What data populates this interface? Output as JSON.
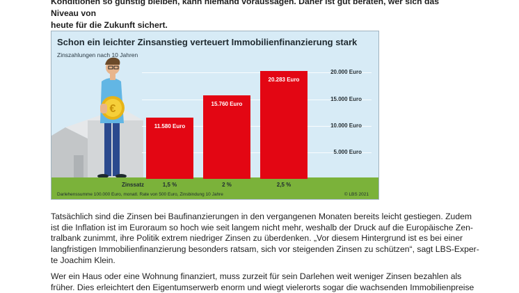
{
  "intro": {
    "line1": "Konditionen so günstig bleiben, kann niemand voraussagen. Daher ist gut beraten, wer sich das Niveau von",
    "line2": "heute für die Zukunft sichert."
  },
  "infographic": {
    "footnote": "Darlehenssumme 100.000 Euro, monatl. Rate von 500 Euro, Zinsbindung 10 Jahre",
    "copyright": "© LBS 2021",
    "rate_caption": "Zinssatz"
  },
  "chart_data": {
    "type": "bar",
    "title": "Schon ein leichter Zinsanstieg verteuert Immobilienfinanzierung stark",
    "subtitle": "Zinszahlungen nach 10 Jahren",
    "categories": [
      "1,5 %",
      "2 %",
      "2,5 %"
    ],
    "values": [
      11580,
      15760,
      20283
    ],
    "value_labels": [
      "11.580 Euro",
      "15.760 Euro",
      "20.283 Euro"
    ],
    "yticks": [
      5000,
      10000,
      15000,
      20000
    ],
    "ytick_labels": [
      "5.000 Euro",
      "10.000 Euro",
      "15.000 Euro",
      "20.000 Euro"
    ],
    "ylim": [
      0,
      21500
    ],
    "grid": true,
    "bar_color": "#e30613"
  },
  "paragraph1": {
    "lines": [
      "Tatsächlich sind die Zinsen bei Baufinanzierungen in den vergangenen Monaten bereits leicht gestiegen. Zudem",
      "ist die Inflation ist im Euroraum so hoch wie seit langem nicht mehr, weshalb der Druck auf die Europäische Zen-",
      "tralbank zunimmt, ihre Politik extrem niedriger Zinsen zu überdenken. „Vor diesem Hintergrund ist es bei einer",
      "langfristigen Immobilienfinanzierung besonders ratsam, sich vor steigenden Zinsen zu schützen“, sagt LBS-Exper-",
      "te Joachim Klein."
    ]
  },
  "paragraph2": {
    "lines": [
      "Wer ein Haus oder eine Wohnung finanziert, muss zurzeit für sein Darlehen weit weniger Zinsen bezahlen als",
      "früher. Dies erleichtert den Eigentumserwerb enorm und wiegt vielerorts sogar die wachsenden Immobilienpreise"
    ]
  }
}
